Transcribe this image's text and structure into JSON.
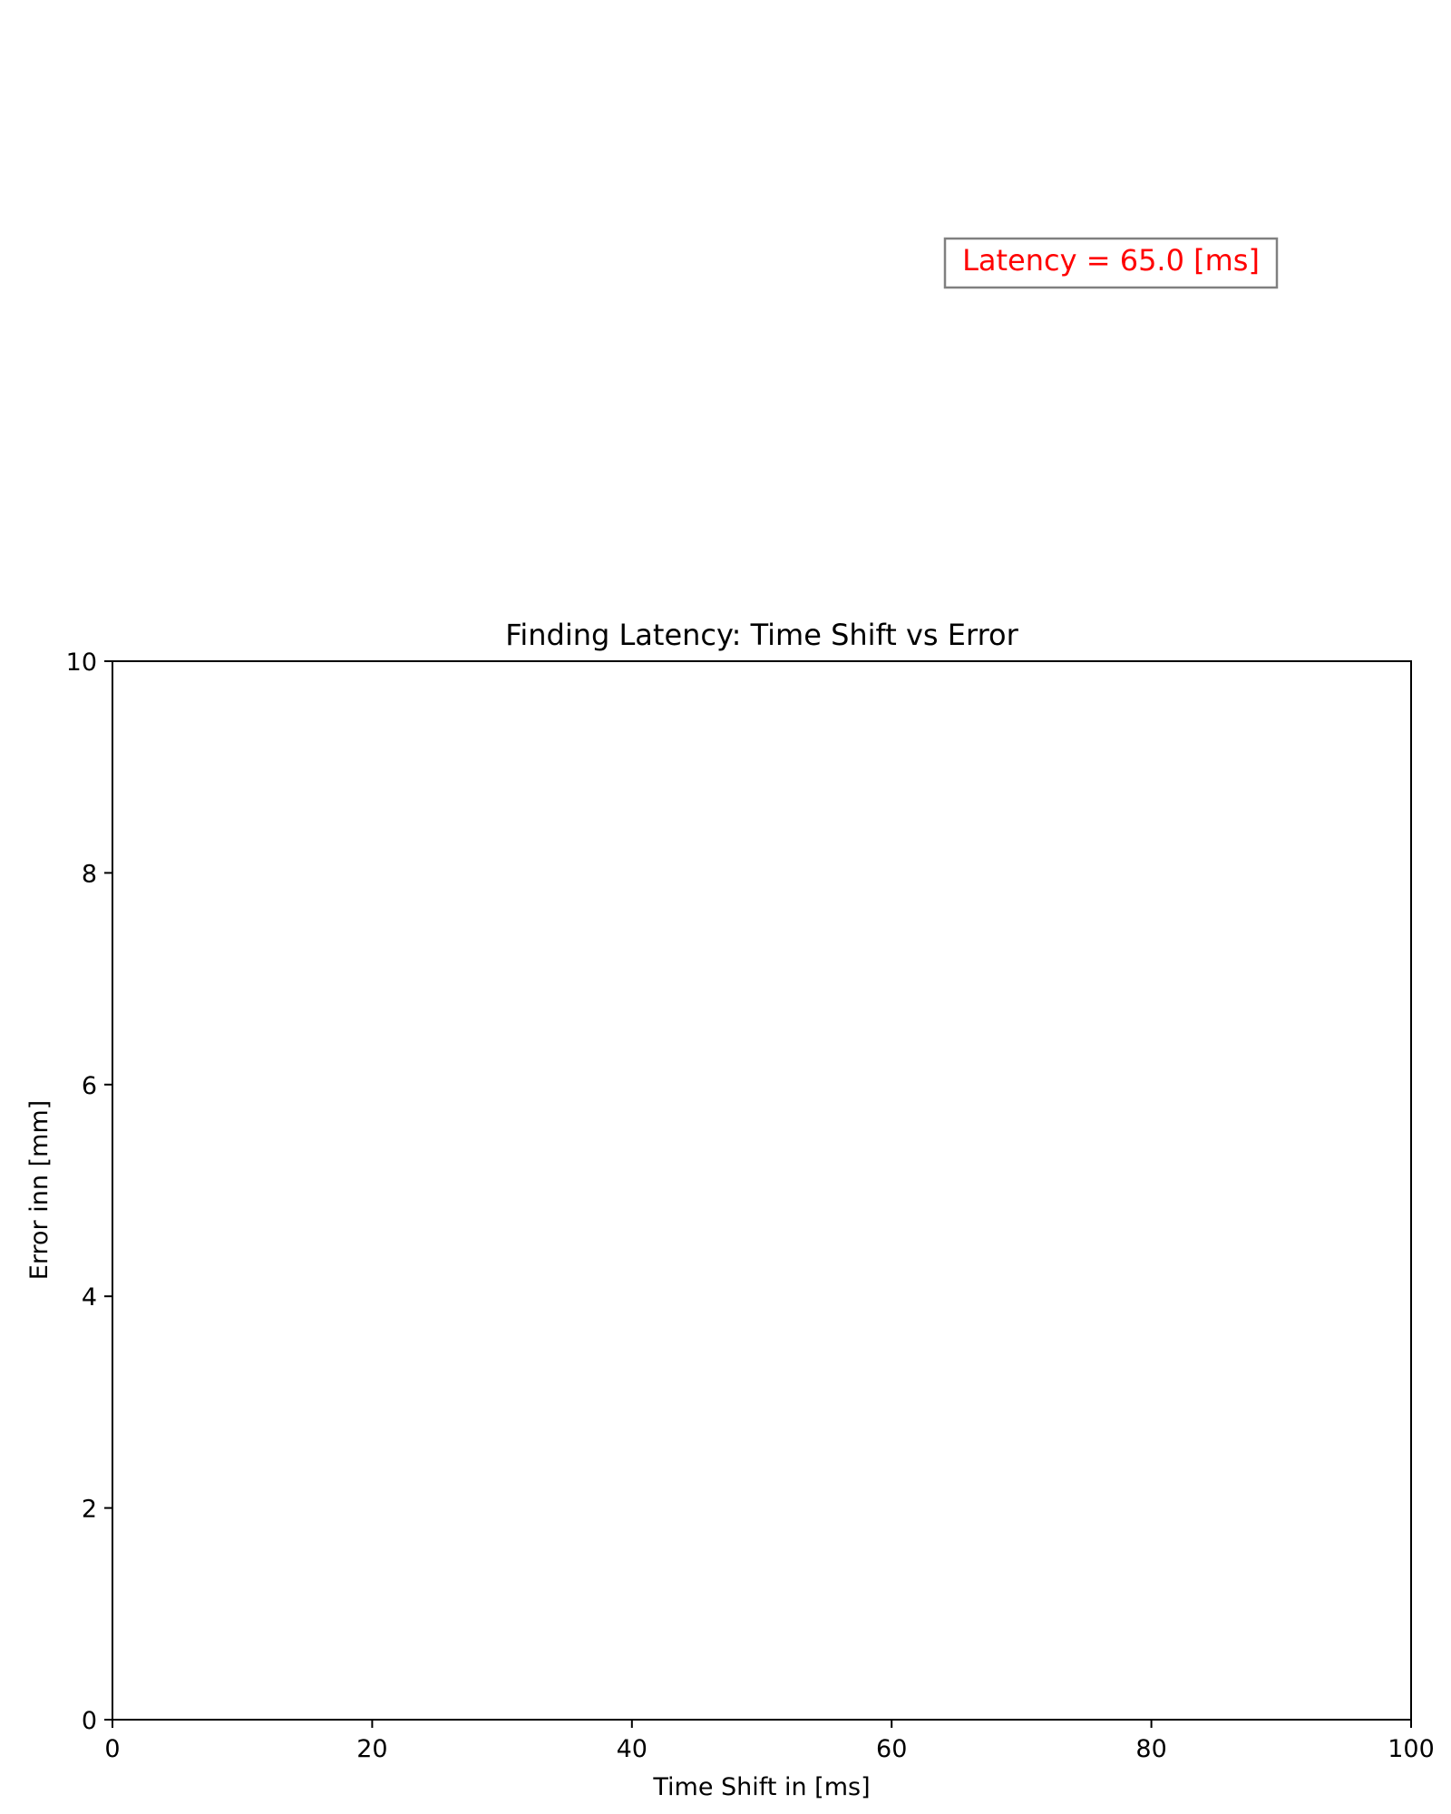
{
  "chart_data": {
    "type": "line",
    "title": "Finding Latency: Time Shift vs Error",
    "xlabel": "Time Shift in [ms]",
    "ylabel": "Error inn [mm]",
    "xlim": [
      0,
      100
    ],
    "ylim": [
      0,
      10
    ],
    "x_ticks": [
      0,
      20,
      40,
      60,
      80,
      100
    ],
    "y_ticks": [
      0,
      2,
      4,
      6,
      8,
      10
    ],
    "x_tick_labels": [
      "0",
      "20",
      "40",
      "60",
      "80",
      "100"
    ],
    "y_tick_labels": [
      "0",
      "2",
      "4",
      "6",
      "8",
      "10"
    ],
    "series": [],
    "grid": false,
    "annotation": {
      "text": "Latency = 65.0 [ms]",
      "color": "#ff0000",
      "border_color": "#808080"
    }
  }
}
